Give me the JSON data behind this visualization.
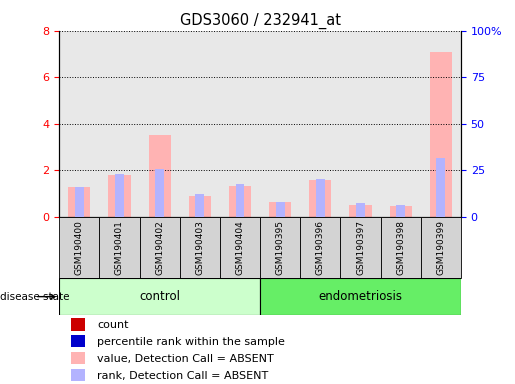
{
  "title": "GDS3060 / 232941_at",
  "samples": [
    "GSM190400",
    "GSM190401",
    "GSM190402",
    "GSM190403",
    "GSM190404",
    "GSM190395",
    "GSM190396",
    "GSM190397",
    "GSM190398",
    "GSM190399"
  ],
  "ctrl_count": 5,
  "endo_count": 5,
  "value_absent": [
    1.3,
    1.8,
    3.5,
    0.9,
    1.35,
    0.65,
    1.6,
    0.5,
    0.45,
    7.1
  ],
  "rank_absent": [
    1.3,
    1.85,
    2.05,
    1.0,
    1.4,
    0.65,
    1.65,
    0.6,
    0.5,
    2.55
  ],
  "ylim_left": [
    0,
    8
  ],
  "ylim_right": [
    0,
    100
  ],
  "yticks_left": [
    0,
    2,
    4,
    6,
    8
  ],
  "yticks_right": [
    0,
    25,
    50,
    75,
    100
  ],
  "ytick_labels_right": [
    "0",
    "25",
    "50",
    "75",
    "100%"
  ],
  "color_value_absent": "#ffb3b3",
  "color_rank_absent": "#b3b3ff",
  "color_count": "#cc0000",
  "color_percentile": "#0000cc",
  "color_control_bg": "#ccffcc",
  "color_endometriosis_bg": "#66ee66",
  "color_sample_bg": "#d3d3d3",
  "legend_items": [
    {
      "label": "count",
      "color": "#cc0000"
    },
    {
      "label": "percentile rank within the sample",
      "color": "#0000cc"
    },
    {
      "label": "value, Detection Call = ABSENT",
      "color": "#ffb3b3"
    },
    {
      "label": "rank, Detection Call = ABSENT",
      "color": "#b3b3ff"
    }
  ],
  "disease_state_label": "disease state",
  "control_label": "control",
  "endometriosis_label": "endometriosis"
}
